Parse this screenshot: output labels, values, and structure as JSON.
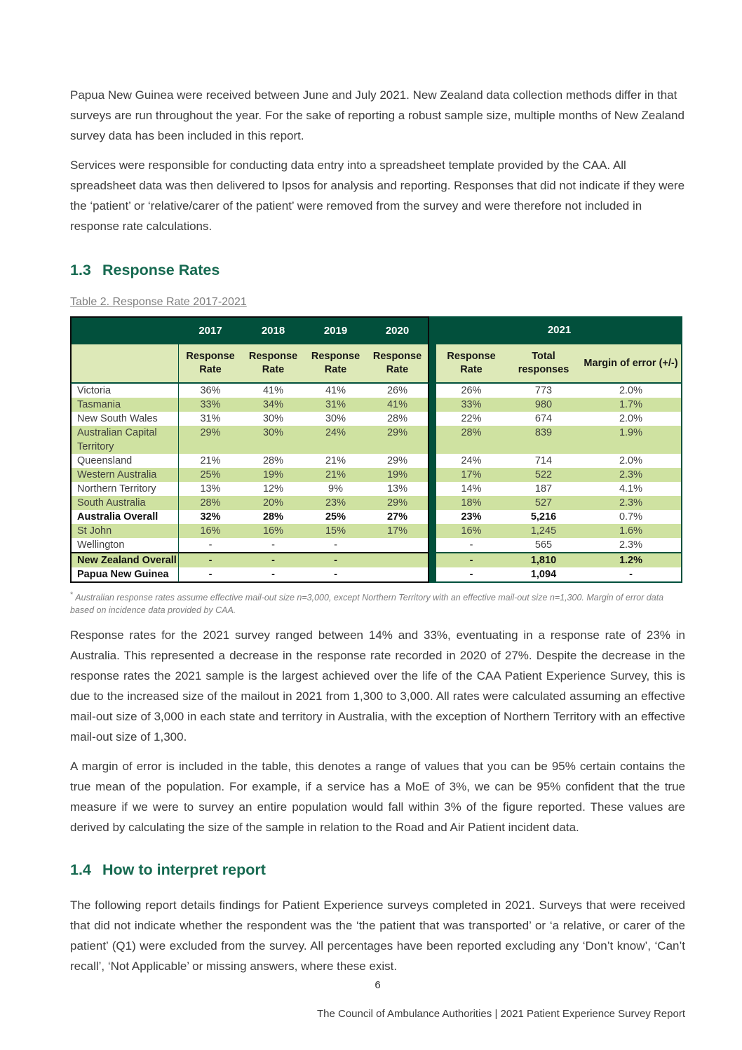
{
  "colors": {
    "heading_green": "#176a51",
    "table_header_green": "#02503c",
    "row_stripe_green": "#cfe2a1",
    "subheader_green": "#dde9b8",
    "body_text": "#3b3b3b",
    "caption_grey": "#7f7f7f"
  },
  "intro_paragraphs": [
    "Papua New Guinea were received between June and July 2021. New Zealand data collection methods differ in that surveys are run throughout the year. For the sake of reporting a robust sample size, multiple months of New Zealand survey data has been included in this report.",
    "Services were responsible for conducting data entry into a spreadsheet template provided by the CAA. All spreadsheet data was then delivered to Ipsos for analysis and reporting. Responses that did not indicate if they were the ‘patient’ or ‘relative/carer of the patient’ were removed from the survey and were therefore not included in response rate calculations."
  ],
  "section_response_rates": {
    "number": "1.3",
    "title": "Response Rates"
  },
  "table_caption": "Table 2. Response Rate 2017-2021",
  "table": {
    "years": [
      "2017",
      "2018",
      "2019",
      "2020",
      "2021"
    ],
    "subheaders": [
      "Response Rate",
      "Response Rate",
      "Response Rate",
      "Response Rate",
      "Response Rate",
      "Total responses",
      "Margin of error (+/-)"
    ],
    "rows": [
      {
        "label": "Victoria",
        "values": [
          "36%",
          "41%",
          "41%",
          "26%",
          "26%",
          "773",
          "2.0%"
        ],
        "shade": "white",
        "bold": false,
        "moe_regular": false,
        "divider_top": false
      },
      {
        "label": "Tasmania",
        "values": [
          "33%",
          "34%",
          "31%",
          "41%",
          "33%",
          "980",
          "1.7%"
        ],
        "shade": "green",
        "bold": false,
        "moe_regular": false,
        "divider_top": false
      },
      {
        "label": "New South Wales",
        "values": [
          "31%",
          "30%",
          "30%",
          "28%",
          "22%",
          "674",
          "2.0%"
        ],
        "shade": "white",
        "bold": false,
        "moe_regular": false,
        "divider_top": false
      },
      {
        "label": "Australian Capital Territory",
        "values": [
          "29%",
          "30%",
          "24%",
          "29%",
          "28%",
          "839",
          "1.9%"
        ],
        "shade": "green",
        "bold": false,
        "moe_regular": false,
        "divider_top": false
      },
      {
        "label": "Queensland",
        "values": [
          "21%",
          "28%",
          "21%",
          "29%",
          "24%",
          "714",
          "2.0%"
        ],
        "shade": "white",
        "bold": false,
        "moe_regular": false,
        "divider_top": false
      },
      {
        "label": "Western Australia",
        "values": [
          "25%",
          "19%",
          "21%",
          "19%",
          "17%",
          "522",
          "2.3%"
        ],
        "shade": "green",
        "bold": false,
        "moe_regular": false,
        "divider_top": false
      },
      {
        "label": "Northern Territory",
        "values": [
          "13%",
          "12%",
          "9%",
          "13%",
          "14%",
          "187",
          "4.1%"
        ],
        "shade": "white",
        "bold": false,
        "moe_regular": false,
        "divider_top": false
      },
      {
        "label": "South Australia",
        "values": [
          "28%",
          "20%",
          "23%",
          "29%",
          "18%",
          "527",
          "2.3%"
        ],
        "shade": "green",
        "bold": false,
        "moe_regular": false,
        "divider_top": false
      },
      {
        "label": "Australia Overall",
        "values": [
          "32%",
          "28%",
          "25%",
          "27%",
          "23%",
          "5,216",
          "0.7%"
        ],
        "shade": "white",
        "bold": true,
        "moe_regular": true,
        "divider_top": false
      },
      {
        "label": "St John",
        "values": [
          "16%",
          "16%",
          "15%",
          "17%",
          "16%",
          "1,245",
          "1.6%"
        ],
        "shade": "green",
        "bold": false,
        "moe_regular": false,
        "divider_top": false
      },
      {
        "label": "Wellington",
        "values": [
          "-",
          "-",
          "-",
          "",
          "-",
          "565",
          "2.3%"
        ],
        "shade": "white",
        "bold": false,
        "moe_regular": false,
        "divider_top": false
      },
      {
        "label": "New Zealand Overall",
        "values": [
          "-",
          "-",
          "-",
          "",
          "-",
          "1,810",
          "1.2%"
        ],
        "shade": "green",
        "bold": true,
        "moe_regular": false,
        "divider_top": true
      },
      {
        "label": "Papua New Guinea",
        "values": [
          "-",
          "-",
          "-",
          "",
          "-",
          "1,094",
          "-"
        ],
        "shade": "white",
        "bold": true,
        "moe_regular": false,
        "divider_top": false
      }
    ]
  },
  "footnote": {
    "marker": "*",
    "text": "Australian response rates assume effective mail-out size n=3,000, except Northern Territory with an effective mail-out size n=1,300. Margin of error data based on incidence data provided by CAA."
  },
  "body_paragraphs": [
    "Response rates for the 2021 survey ranged between 14% and 33%, eventuating in a response rate of 23% in Australia. This represented a decrease in the response rate recorded in 2020 of 27%. Despite the decrease in the response rates the 2021 sample is the largest achieved over the life of the CAA Patient Experience Survey, this is due to the increased size of the mailout in 2021 from 1,300 to 3,000. All rates were calculated assuming an effective mail-out size of 3,000 in each state and territory in Australia, with the exception of Northern Territory with an effective mail-out size of 1,300.",
    "A margin of error is included in the table, this denotes a range of values that you can be 95% certain contains the true mean of the population. For example, if a service has a MoE of 3%, we can be 95% confident that the true measure if we were to survey an entire population would fall within 3% of the figure reported. These values are derived by calculating the size of the sample in relation to the Road and Air Patient incident data."
  ],
  "section_interpret": {
    "number": "1.4",
    "title": "How to interpret report"
  },
  "interpret_paragraph": "The following report details findings for Patient Experience surveys completed in 2021. Surveys that were received that did not indicate whether the respondent was the ‘the patient that was transported’ or ‘a relative, or carer of the patient’ (Q1) were excluded from the survey. All percentages have been reported excluding any ‘Don’t know’, ‘Can’t recall’, ‘Not Applicable’ or missing answers, where these exist.",
  "page_number": "6",
  "footer_text": "The Council of Ambulance Authorities | 2021 Patient Experience Survey Report"
}
